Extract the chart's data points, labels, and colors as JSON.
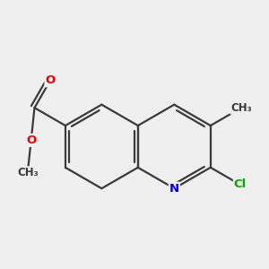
{
  "background_color": "#efefef",
  "bond_color": "#3a3a3a",
  "bond_width": 1.6,
  "dbo": 0.09,
  "atom_colors": {
    "N": "#0000ee",
    "O": "#ee0000",
    "Cl": "#00aa00",
    "C": "#3a3a3a"
  },
  "figsize": [
    3.0,
    3.0
  ],
  "dpi": 100,
  "font_size": 9.5
}
